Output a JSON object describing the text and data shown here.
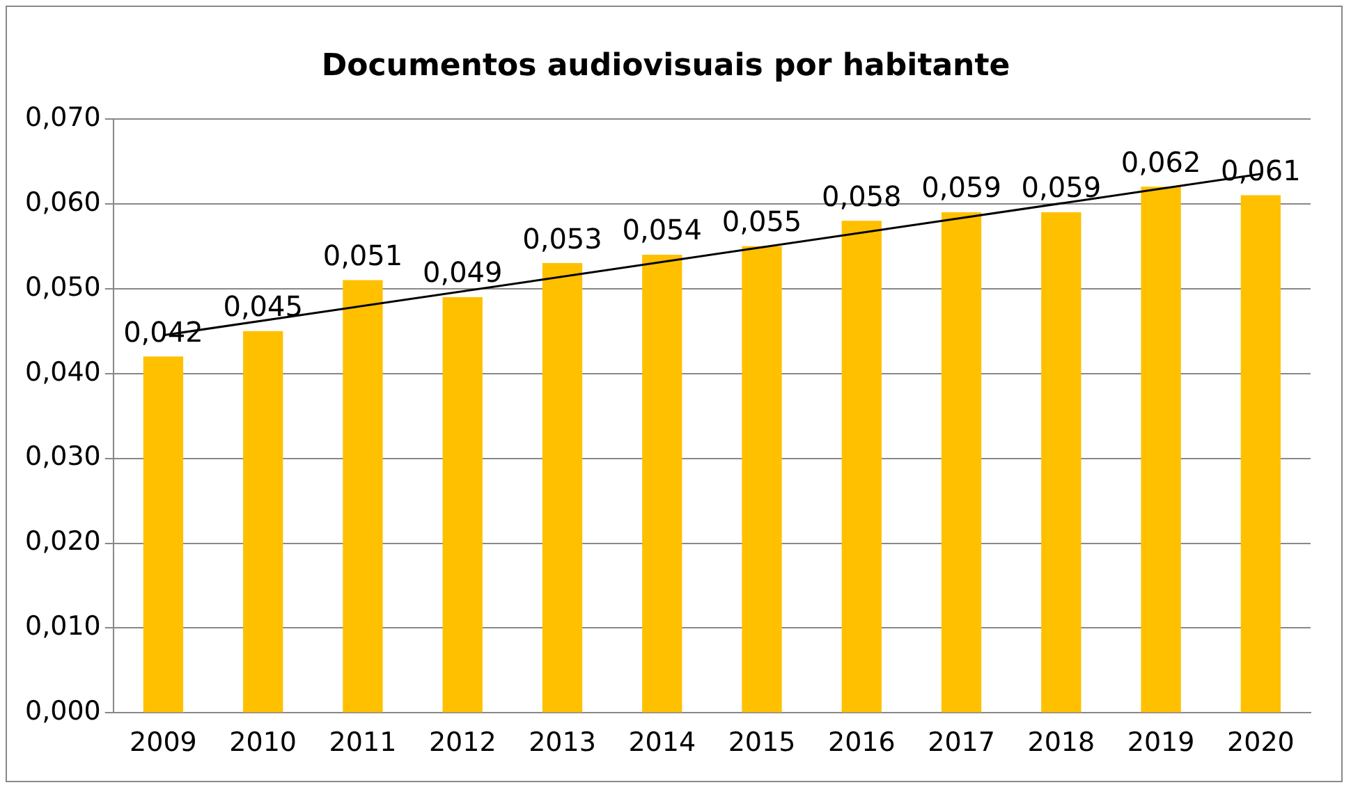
{
  "chart_data": {
    "type": "bar",
    "title": "Documentos audiovisuais por habitante",
    "categories": [
      "2009",
      "2010",
      "2011",
      "2012",
      "2013",
      "2014",
      "2015",
      "2016",
      "2017",
      "2018",
      "2019",
      "2020"
    ],
    "series": [
      {
        "color": "#ffc000",
        "values": [
          0.042,
          0.045,
          0.051,
          0.049,
          0.053,
          0.054,
          0.055,
          0.058,
          0.059,
          0.059,
          0.062,
          0.061
        ],
        "value_labels": [
          "0,042",
          "0,045",
          "0,051",
          "0,049",
          "0,053",
          "0,054",
          "0,055",
          "0,058",
          "0,059",
          "0,059",
          "0,062",
          "0,061"
        ]
      },
      {
        "type": "line",
        "color": "#000000",
        "values": [
          0.0445,
          null,
          null,
          null,
          null,
          null,
          null,
          null,
          null,
          null,
          null,
          0.0635
        ]
      }
    ],
    "ylim": [
      0,
      0.07
    ],
    "yticks": [
      {
        "value": 0,
        "label": "0,000"
      },
      {
        "value": 0.01,
        "label": "0,010"
      },
      {
        "value": 0.02,
        "label": "0,020"
      },
      {
        "value": 0.03,
        "label": "0,030"
      },
      {
        "value": 0.04,
        "label": "0,040"
      },
      {
        "value": 0.05,
        "label": "0,050"
      },
      {
        "value": 0.06,
        "label": "0,060"
      },
      {
        "value": 0.07,
        "label": "0,070"
      }
    ],
    "grid": "y",
    "legend": false,
    "marker": "none",
    "line_style": "solid"
  }
}
